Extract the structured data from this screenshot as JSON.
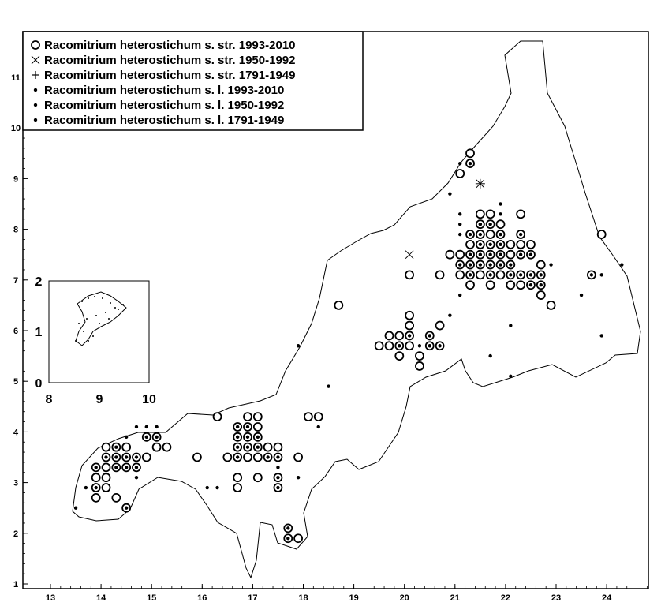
{
  "chart_data": {
    "type": "scatter",
    "title": "",
    "xlabel": "",
    "ylabel": "",
    "xlim": [
      12.5,
      25.0
    ],
    "ylim": [
      0.9,
      11.9
    ],
    "x_ticks": [
      "13",
      "14",
      "15",
      "16",
      "17",
      "18",
      "19",
      "20",
      "21",
      "22",
      "23",
      "24"
    ],
    "y_ticks": [
      "1",
      "2",
      "3",
      "4",
      "5",
      "6",
      "7",
      "8",
      "9",
      "10",
      "11"
    ],
    "legend": {
      "position": "top-left",
      "entries": [
        {
          "label": "Racomitrium heterostichum s. str. 1993-2010",
          "symbol": "circle"
        },
        {
          "label": "Racomitrium heterostichum s. str. 1950-1992",
          "symbol": "cross-x"
        },
        {
          "label": "Racomitrium heterostichum s. str. 1791-1949",
          "symbol": "plus"
        },
        {
          "label": "Racomitrium heterostichum s. l. 1993-2010",
          "symbol": "dot"
        },
        {
          "label": "Racomitrium heterostichum s. l. 1950-1992",
          "symbol": "dot"
        },
        {
          "label": "Racomitrium heterostichum s. l. 1791-1949",
          "symbol": "dot"
        }
      ]
    },
    "series": [
      {
        "name": "Racomitrium heterostichum s. str. 1993-2010",
        "points": [
          [
            13.9,
            3.3
          ],
          [
            13.9,
            3.1
          ],
          [
            13.9,
            2.9
          ],
          [
            13.9,
            2.7
          ],
          [
            14.1,
            3.7
          ],
          [
            14.1,
            3.5
          ],
          [
            14.1,
            3.3
          ],
          [
            14.1,
            3.1
          ],
          [
            14.1,
            2.9
          ],
          [
            14.3,
            3.7
          ],
          [
            14.3,
            3.5
          ],
          [
            14.3,
            3.3
          ],
          [
            14.3,
            2.7
          ],
          [
            14.5,
            3.7
          ],
          [
            14.5,
            3.5
          ],
          [
            14.5,
            3.3
          ],
          [
            14.5,
            2.5
          ],
          [
            14.7,
            3.5
          ],
          [
            14.7,
            3.3
          ],
          [
            14.9,
            3.9
          ],
          [
            14.9,
            3.5
          ],
          [
            15.1,
            3.9
          ],
          [
            15.1,
            3.7
          ],
          [
            15.3,
            3.7
          ],
          [
            15.9,
            3.5
          ],
          [
            16.3,
            4.3
          ],
          [
            16.5,
            3.5
          ],
          [
            16.7,
            4.1
          ],
          [
            16.7,
            3.9
          ],
          [
            16.7,
            3.7
          ],
          [
            16.7,
            3.5
          ],
          [
            16.7,
            3.1
          ],
          [
            16.7,
            2.9
          ],
          [
            16.9,
            4.3
          ],
          [
            16.9,
            4.1
          ],
          [
            16.9,
            3.9
          ],
          [
            16.9,
            3.7
          ],
          [
            16.9,
            3.5
          ],
          [
            17.1,
            4.3
          ],
          [
            17.1,
            4.1
          ],
          [
            17.1,
            3.9
          ],
          [
            17.1,
            3.7
          ],
          [
            17.1,
            3.5
          ],
          [
            17.1,
            3.1
          ],
          [
            17.3,
            3.7
          ],
          [
            17.3,
            3.5
          ],
          [
            17.5,
            3.7
          ],
          [
            17.5,
            3.5
          ],
          [
            17.5,
            3.1
          ],
          [
            17.5,
            2.9
          ],
          [
            17.7,
            2.1
          ],
          [
            17.7,
            1.9
          ],
          [
            17.9,
            1.9
          ],
          [
            17.9,
            3.5
          ],
          [
            18.1,
            4.3
          ],
          [
            18.3,
            4.3
          ],
          [
            18.7,
            6.5
          ],
          [
            19.5,
            5.7
          ],
          [
            19.7,
            5.9
          ],
          [
            19.7,
            5.7
          ],
          [
            19.9,
            5.9
          ],
          [
            19.9,
            5.7
          ],
          [
            19.9,
            5.5
          ],
          [
            20.1,
            7.1
          ],
          [
            20.1,
            6.3
          ],
          [
            20.1,
            6.1
          ],
          [
            20.1,
            5.9
          ],
          [
            20.1,
            5.7
          ],
          [
            20.3,
            5.5
          ],
          [
            20.3,
            5.3
          ],
          [
            20.5,
            5.9
          ],
          [
            20.5,
            5.7
          ],
          [
            20.7,
            6.1
          ],
          [
            20.7,
            5.7
          ],
          [
            20.7,
            7.1
          ],
          [
            20.9,
            7.5
          ],
          [
            21.1,
            9.1
          ],
          [
            21.1,
            7.5
          ],
          [
            21.1,
            7.3
          ],
          [
            21.1,
            7.1
          ],
          [
            21.3,
            9.5
          ],
          [
            21.3,
            9.3
          ],
          [
            21.3,
            7.9
          ],
          [
            21.3,
            7.7
          ],
          [
            21.3,
            7.5
          ],
          [
            21.3,
            7.3
          ],
          [
            21.3,
            7.1
          ],
          [
            21.3,
            6.9
          ],
          [
            21.5,
            8.3
          ],
          [
            21.5,
            8.1
          ],
          [
            21.5,
            7.9
          ],
          [
            21.5,
            7.7
          ],
          [
            21.5,
            7.5
          ],
          [
            21.5,
            7.3
          ],
          [
            21.5,
            7.1
          ],
          [
            21.7,
            8.3
          ],
          [
            21.7,
            8.1
          ],
          [
            21.7,
            7.9
          ],
          [
            21.7,
            7.7
          ],
          [
            21.7,
            7.5
          ],
          [
            21.7,
            7.3
          ],
          [
            21.7,
            7.1
          ],
          [
            21.7,
            6.9
          ],
          [
            21.9,
            8.1
          ],
          [
            21.9,
            7.9
          ],
          [
            21.9,
            7.7
          ],
          [
            21.9,
            7.5
          ],
          [
            21.9,
            7.3
          ],
          [
            21.9,
            7.1
          ],
          [
            22.1,
            7.7
          ],
          [
            22.1,
            7.5
          ],
          [
            22.1,
            7.3
          ],
          [
            22.1,
            7.1
          ],
          [
            22.1,
            6.9
          ],
          [
            22.3,
            8.3
          ],
          [
            22.3,
            7.9
          ],
          [
            22.3,
            7.7
          ],
          [
            22.3,
            7.5
          ],
          [
            22.3,
            7.1
          ],
          [
            22.3,
            6.9
          ],
          [
            22.5,
            7.7
          ],
          [
            22.5,
            7.5
          ],
          [
            22.5,
            7.1
          ],
          [
            22.5,
            6.9
          ],
          [
            22.7,
            7.3
          ],
          [
            22.7,
            7.1
          ],
          [
            22.7,
            6.9
          ],
          [
            22.7,
            6.7
          ],
          [
            22.9,
            6.5
          ],
          [
            23.7,
            7.1
          ],
          [
            23.9,
            7.9
          ]
        ]
      },
      {
        "name": "Racomitrium heterostichum s. str. 1950-1992",
        "points": [
          [
            20.1,
            7.5
          ]
        ]
      },
      {
        "name": "Racomitrium heterostichum s. str. 1791-1949",
        "points": [
          [
            21.5,
            8.9
          ]
        ]
      },
      {
        "name": "Racomitrium heterostichum s. l. 1993-2010",
        "points": [
          [
            13.5,
            2.5
          ],
          [
            13.7,
            2.9
          ],
          [
            14.7,
            4.1
          ],
          [
            15.1,
            4.1
          ],
          [
            14.7,
            3.1
          ],
          [
            16.1,
            2.9
          ],
          [
            16.3,
            2.9
          ],
          [
            17.5,
            3.3
          ],
          [
            17.9,
            3.1
          ],
          [
            17.9,
            5.7
          ],
          [
            18.5,
            4.9
          ],
          [
            18.3,
            4.1
          ],
          [
            20.9,
            6.3
          ],
          [
            20.9,
            8.7
          ],
          [
            21.1,
            9.3
          ],
          [
            21.1,
            8.3
          ],
          [
            21.1,
            8.1
          ],
          [
            21.1,
            7.9
          ],
          [
            21.1,
            6.7
          ],
          [
            21.7,
            5.5
          ],
          [
            21.9,
            8.5
          ],
          [
            21.9,
            8.3
          ],
          [
            22.1,
            6.1
          ],
          [
            22.1,
            5.1
          ],
          [
            22.9,
            7.3
          ],
          [
            23.5,
            6.7
          ],
          [
            23.9,
            7.1
          ],
          [
            23.9,
            5.9
          ],
          [
            24.3,
            7.3
          ],
          [
            20.3,
            5.7
          ]
        ]
      },
      {
        "name": "Racomitrium heterostichum s. l. 1950-1992",
        "points": [
          [
            13.9,
            3.3
          ],
          [
            13.9,
            2.9
          ],
          [
            14.1,
            3.5
          ],
          [
            14.3,
            3.7
          ],
          [
            14.3,
            3.5
          ],
          [
            14.3,
            3.3
          ],
          [
            14.5,
            3.5
          ],
          [
            14.5,
            3.3
          ],
          [
            14.5,
            2.5
          ],
          [
            14.7,
            3.5
          ],
          [
            14.7,
            3.3
          ],
          [
            14.9,
            3.9
          ],
          [
            15.1,
            3.9
          ],
          [
            16.7,
            4.1
          ],
          [
            16.7,
            3.9
          ],
          [
            16.7,
            3.7
          ],
          [
            16.7,
            3.5
          ],
          [
            16.9,
            4.1
          ],
          [
            16.9,
            3.9
          ],
          [
            16.9,
            3.7
          ],
          [
            17.1,
            3.9
          ],
          [
            17.1,
            3.7
          ],
          [
            17.3,
            3.5
          ],
          [
            17.5,
            3.5
          ],
          [
            17.5,
            3.1
          ],
          [
            17.7,
            2.1
          ],
          [
            17.7,
            1.9
          ],
          [
            19.9,
            5.7
          ],
          [
            20.1,
            5.9
          ],
          [
            20.5,
            5.9
          ],
          [
            20.5,
            5.7
          ],
          [
            20.7,
            5.7
          ],
          [
            21.3,
            9.3
          ],
          [
            21.3,
            7.9
          ],
          [
            21.3,
            7.5
          ],
          [
            21.3,
            7.3
          ],
          [
            21.3,
            7.1
          ],
          [
            21.5,
            8.1
          ],
          [
            21.5,
            7.9
          ],
          [
            21.5,
            7.7
          ],
          [
            21.5,
            7.5
          ],
          [
            21.5,
            7.3
          ],
          [
            21.7,
            8.1
          ],
          [
            21.7,
            7.7
          ],
          [
            21.7,
            7.5
          ],
          [
            21.7,
            7.3
          ],
          [
            21.7,
            7.1
          ],
          [
            21.9,
            7.9
          ],
          [
            21.9,
            7.7
          ],
          [
            21.9,
            7.5
          ],
          [
            22.1,
            7.3
          ],
          [
            22.3,
            7.9
          ],
          [
            22.3,
            7.5
          ],
          [
            22.3,
            7.1
          ],
          [
            22.5,
            7.5
          ],
          [
            22.5,
            7.1
          ],
          [
            22.5,
            6.9
          ],
          [
            22.7,
            7.1
          ],
          [
            22.7,
            6.9
          ],
          [
            23.7,
            7.1
          ]
        ]
      },
      {
        "name": "Racomitrium heterostichum s. l. 1791-1949",
        "points": [
          [
            14.5,
            3.9
          ],
          [
            14.9,
            4.1
          ],
          [
            17.5,
            2.9
          ],
          [
            21.5,
            8.1
          ],
          [
            21.9,
            7.3
          ],
          [
            22.1,
            7.1
          ],
          [
            21.1,
            7.3
          ]
        ]
      }
    ],
    "inset": {
      "xlim": [
        8,
        10
      ],
      "ylim": [
        0,
        2
      ],
      "x_ticks": [
        "8",
        "9",
        "10"
      ],
      "y_ticks": [
        "0",
        "1",
        "2"
      ]
    }
  }
}
